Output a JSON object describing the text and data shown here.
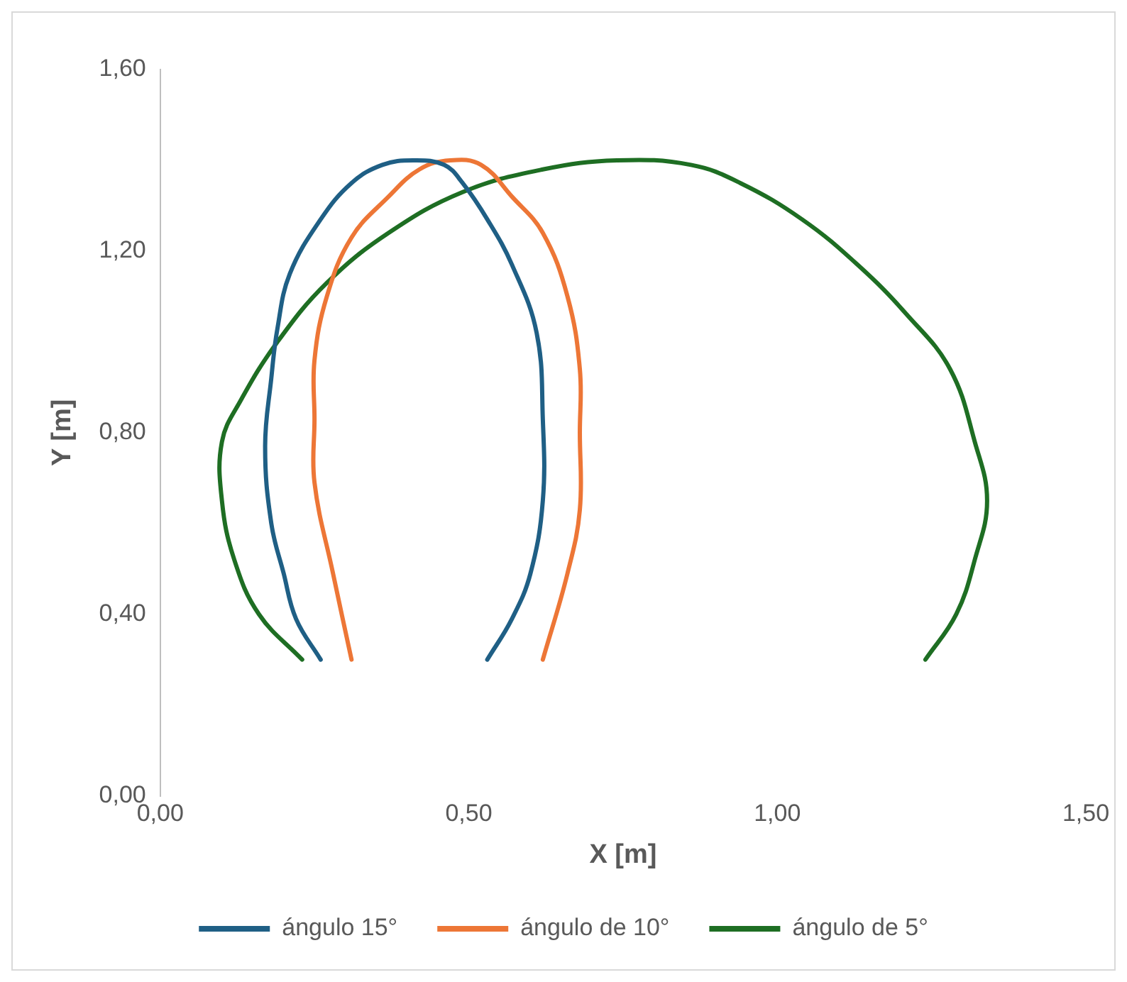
{
  "chart_data": {
    "type": "line",
    "xlabel": "X [m]",
    "ylabel": "Y [m]",
    "legend": "bottom",
    "grid": false,
    "marker": "none",
    "line_style": "solid",
    "xlim": [
      0,
      1.5
    ],
    "xticks": [
      {
        "value": 0,
        "label": "0,00"
      },
      {
        "value": 0.5,
        "label": "0,50"
      },
      {
        "value": 1,
        "label": "1,00"
      },
      {
        "value": 1.5,
        "label": "1,50"
      }
    ],
    "ylim": [
      0,
      1.6
    ],
    "yticks": [
      {
        "value": 0,
        "label": "0,00"
      },
      {
        "value": 0.4,
        "label": "0,40"
      },
      {
        "value": 0.8,
        "label": "0,80"
      },
      {
        "value": 1.2,
        "label": "1,20"
      },
      {
        "value": 1.6,
        "label": "1,60"
      }
    ],
    "series": [
      {
        "name": "ángulo 15°",
        "color": "#1f5f85",
        "x": [
          0.26,
          0.22,
          0.2,
          0.18,
          0.17,
          0.18,
          0.19,
          0.21,
          0.26,
          0.31,
          0.36,
          0.41,
          0.46,
          0.49,
          0.53,
          0.57,
          0.61,
          0.62,
          0.62,
          0.6,
          0.57,
          0.53
        ],
        "values": [
          0.3,
          0.39,
          0.49,
          0.6,
          0.77,
          0.92,
          1.03,
          1.15,
          1.27,
          1.35,
          1.39,
          1.4,
          1.39,
          1.35,
          1.27,
          1.17,
          1.02,
          0.83,
          0.65,
          0.49,
          0.39,
          0.3
        ]
      },
      {
        "name": "ángulo de 10°",
        "color": "#ed7636",
        "x": [
          0.31,
          0.28,
          0.25,
          0.25,
          0.25,
          0.27,
          0.31,
          0.37,
          0.42,
          0.47,
          0.52,
          0.57,
          0.62,
          0.66,
          0.68,
          0.68,
          0.68,
          0.66,
          0.62
        ],
        "values": [
          0.3,
          0.49,
          0.69,
          0.83,
          0.96,
          1.1,
          1.23,
          1.32,
          1.38,
          1.4,
          1.39,
          1.32,
          1.24,
          1.1,
          0.94,
          0.8,
          0.63,
          0.49,
          0.3
        ]
      },
      {
        "name": "ángulo de 5°",
        "color": "#1e6e23",
        "x": [
          0.23,
          0.16,
          0.12,
          0.1,
          0.1,
          0.13,
          0.19,
          0.27,
          0.37,
          0.49,
          0.62,
          0.74,
          0.86,
          0.94,
          1.04,
          1.13,
          1.21,
          1.28,
          1.32,
          1.34,
          1.32,
          1.29,
          1.24
        ],
        "values": [
          0.3,
          0.4,
          0.52,
          0.65,
          0.78,
          0.87,
          1.0,
          1.13,
          1.24,
          1.33,
          1.38,
          1.4,
          1.39,
          1.35,
          1.27,
          1.17,
          1.06,
          0.94,
          0.78,
          0.65,
          0.52,
          0.4,
          0.3
        ]
      }
    ]
  }
}
